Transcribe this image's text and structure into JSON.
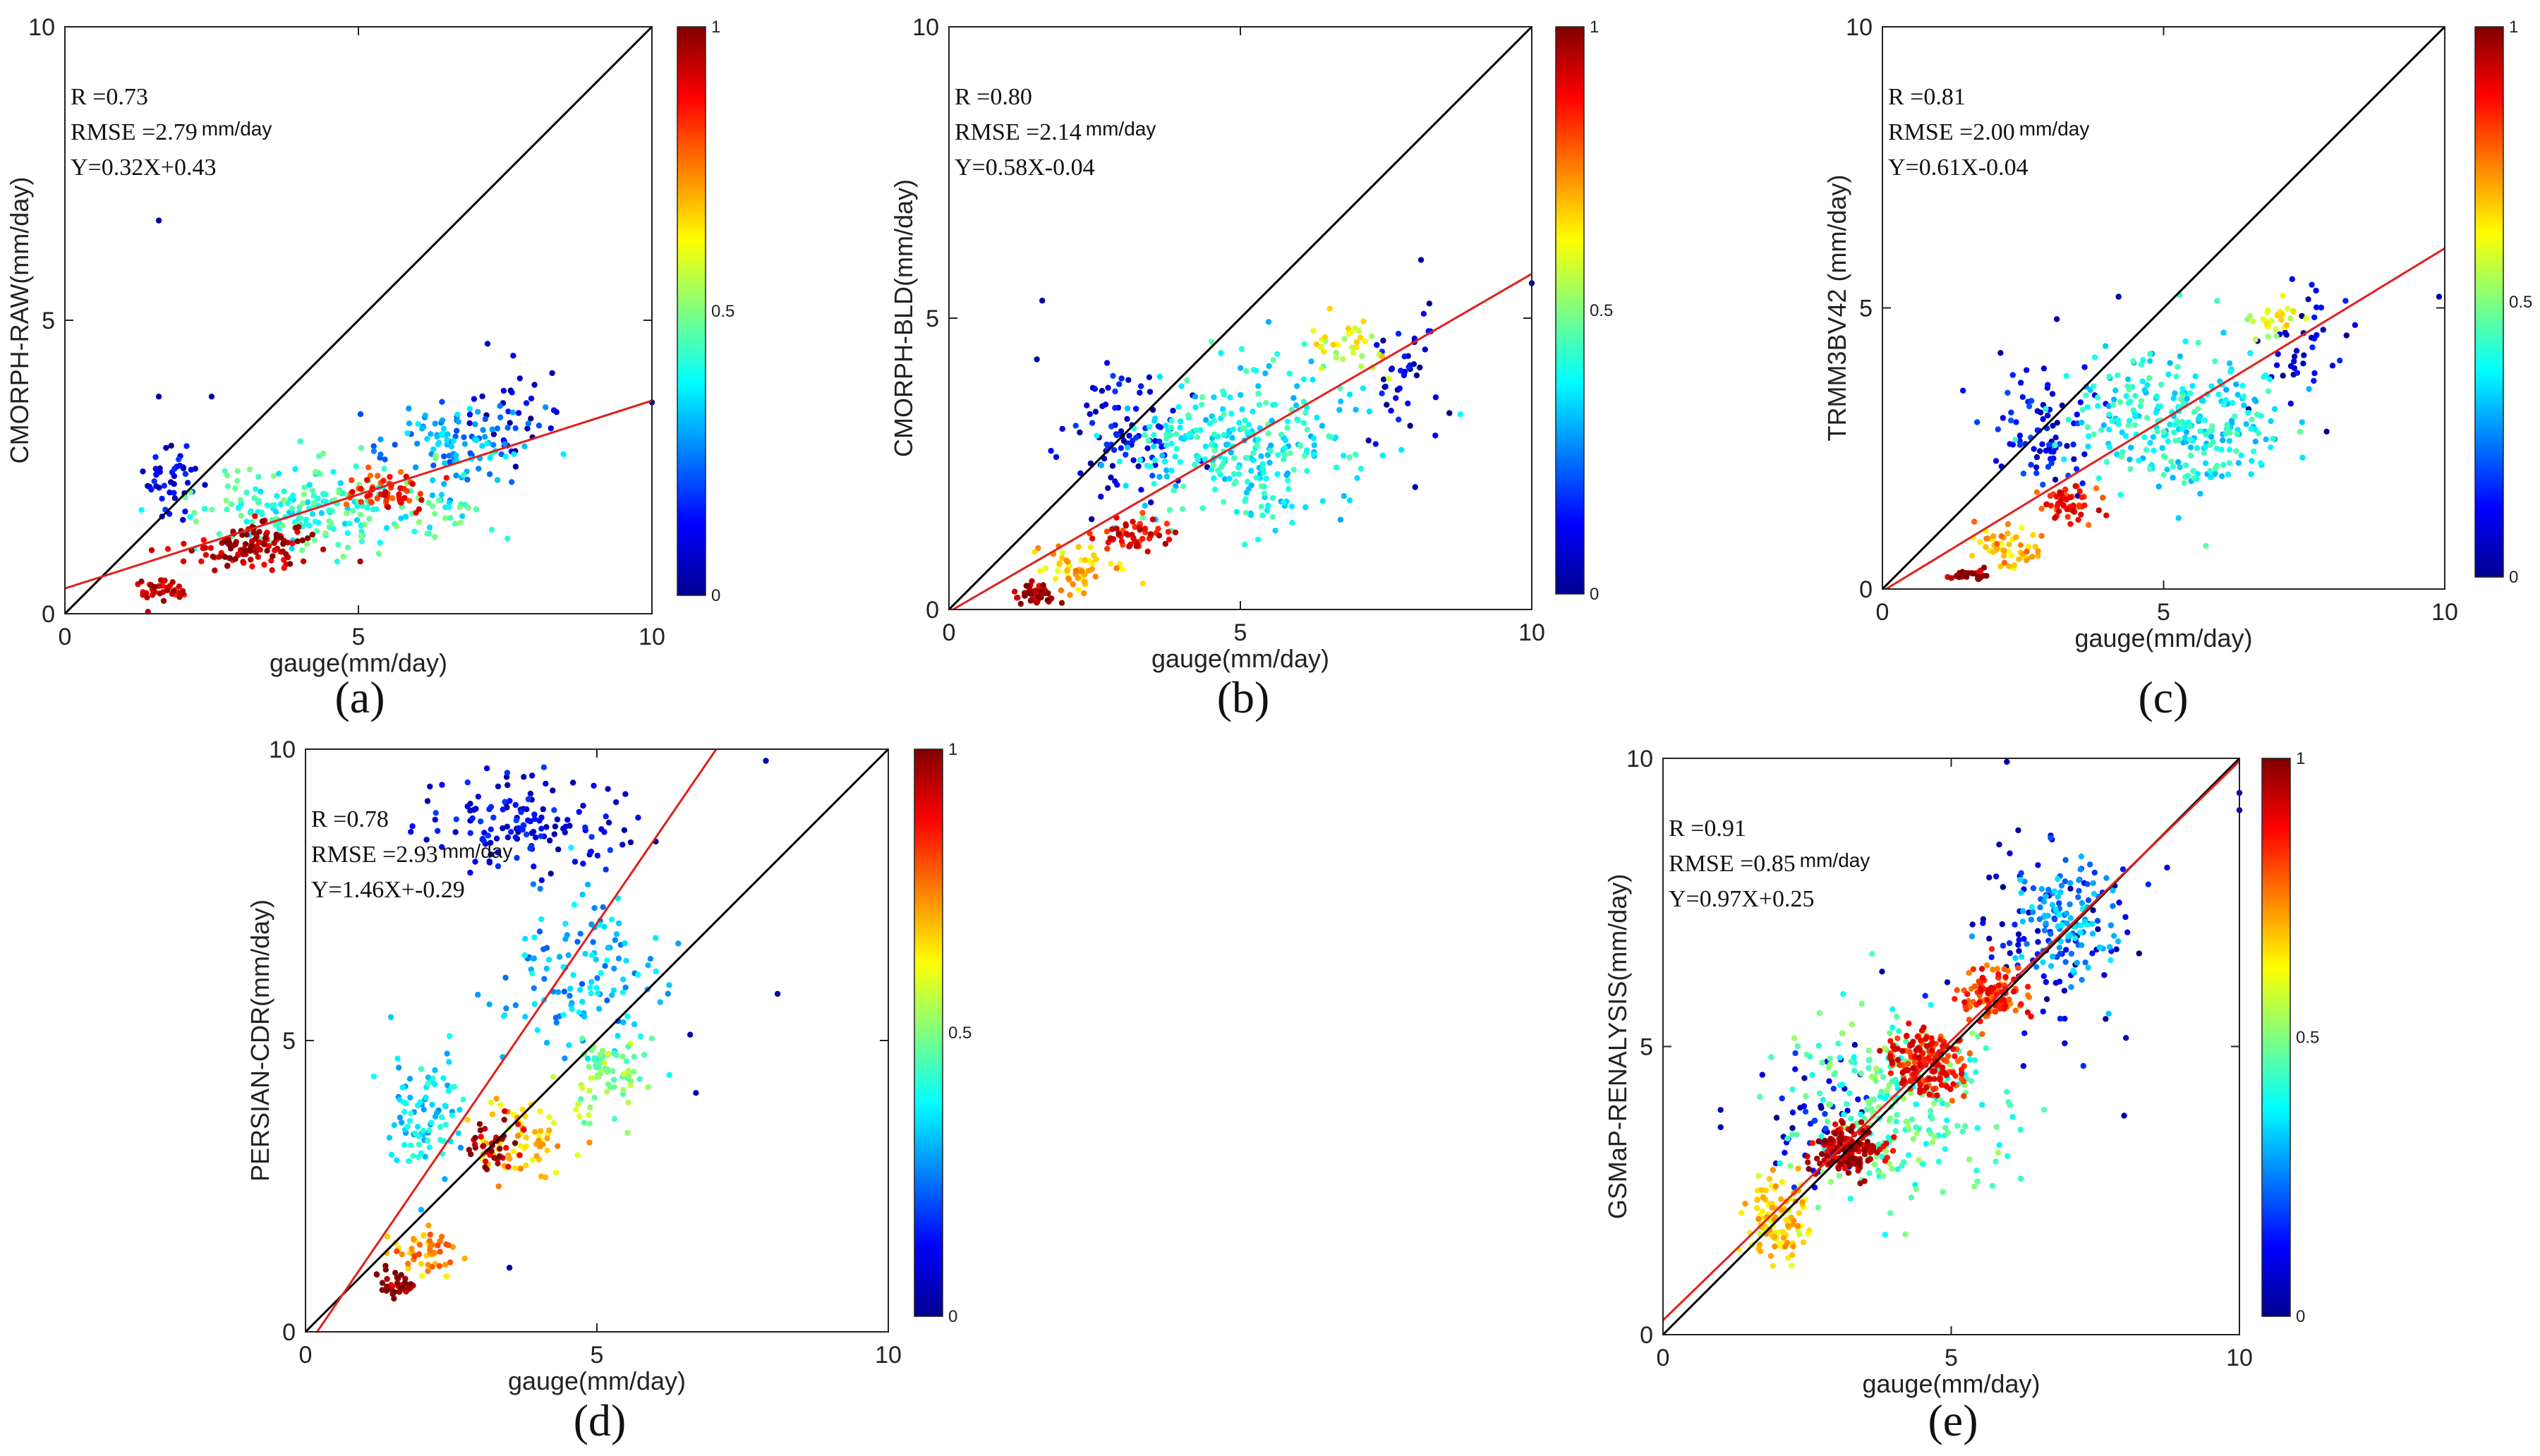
{
  "figure": {
    "colorbar_ticks": [
      "0",
      "0.5",
      "1"
    ]
  },
  "chart_data": [
    {
      "type": "scatter",
      "label": "(a)",
      "xlabel": "gauge(mm/day)",
      "ylabel": "CMORPH-RAW(mm/day)",
      "xlim": [
        0,
        10
      ],
      "ylim": [
        0,
        10
      ],
      "xticks": [
        "0",
        "5",
        "10"
      ],
      "yticks": [
        "0",
        "5",
        "10"
      ],
      "stats": {
        "r": "R =0.73",
        "rmse": "RMSE =2.79",
        "rmse_unit": "mm/day",
        "fit": "Y=0.32X+0.43"
      },
      "slope": 0.32,
      "intercept": 0.43,
      "clusters": [
        {
          "cx": 3.2,
          "cy": 1.15,
          "sx": 0.9,
          "sy": 0.35,
          "n": 120,
          "d": 0.95
        },
        {
          "cx": 5.5,
          "cy": 2.05,
          "sx": 0.5,
          "sy": 0.25,
          "n": 60,
          "d": 0.85
        },
        {
          "cx": 1.6,
          "cy": 0.4,
          "sx": 0.35,
          "sy": 0.2,
          "n": 40,
          "d": 0.9
        },
        {
          "cx": 4.5,
          "cy": 1.8,
          "sx": 2.0,
          "sy": 0.6,
          "n": 220,
          "d": 0.42
        },
        {
          "cx": 6.8,
          "cy": 2.9,
          "sx": 1.2,
          "sy": 0.6,
          "n": 110,
          "d": 0.28
        },
        {
          "cx": 1.8,
          "cy": 2.3,
          "sx": 0.4,
          "sy": 0.6,
          "n": 45,
          "d": 0.1
        },
        {
          "cx": 7.8,
          "cy": 3.4,
          "sx": 0.7,
          "sy": 0.6,
          "n": 30,
          "d": 0.08
        }
      ],
      "outliers": [
        [
          1.6,
          6.7
        ],
        [
          1.6,
          3.7
        ],
        [
          2.5,
          3.7
        ],
        [
          7.2,
          4.6
        ],
        [
          10.0,
          3.6
        ],
        [
          8.3,
          4.1
        ],
        [
          8.0,
          3.9
        ]
      ]
    },
    {
      "type": "scatter",
      "label": "(b)",
      "xlabel": "gauge(mm/day)",
      "ylabel": "CMORPH-BLD(mm/day)",
      "xlim": [
        0,
        10
      ],
      "ylim": [
        0,
        10
      ],
      "xticks": [
        "0",
        "5",
        "10"
      ],
      "yticks": [
        "0",
        "5",
        "10"
      ],
      "stats": {
        "r": "R =0.80",
        "rmse": "RMSE =2.14",
        "rmse_unit": "mm/day",
        "fit": "Y=0.58X-0.04"
      },
      "slope": 0.58,
      "intercept": -0.04,
      "clusters": [
        {
          "cx": 1.5,
          "cy": 0.25,
          "sx": 0.35,
          "sy": 0.15,
          "n": 45,
          "d": 0.95
        },
        {
          "cx": 3.2,
          "cy": 1.3,
          "sx": 0.5,
          "sy": 0.25,
          "n": 55,
          "d": 0.88
        },
        {
          "cx": 2.2,
          "cy": 0.7,
          "sx": 0.6,
          "sy": 0.35,
          "n": 60,
          "d": 0.68
        },
        {
          "cx": 6.7,
          "cy": 4.5,
          "sx": 0.6,
          "sy": 0.4,
          "n": 35,
          "d": 0.6
        },
        {
          "cx": 5.0,
          "cy": 2.8,
          "sx": 1.7,
          "sy": 1.1,
          "n": 300,
          "d": 0.38
        },
        {
          "cx": 3.0,
          "cy": 3.0,
          "sx": 1.0,
          "sy": 1.0,
          "n": 90,
          "d": 0.12
        },
        {
          "cx": 7.8,
          "cy": 4.0,
          "sx": 0.6,
          "sy": 1.0,
          "n": 40,
          "d": 0.08
        }
      ],
      "outliers": [
        [
          1.6,
          5.3
        ],
        [
          8.1,
          6.0
        ],
        [
          10.0,
          5.6
        ],
        [
          8.0,
          2.1
        ],
        [
          7.2,
          2.9
        ]
      ]
    },
    {
      "type": "scatter",
      "label": "(c)",
      "xlabel": "gauge(mm/day)",
      "ylabel": "TRMM3BV42 (mm/day)",
      "xlim": [
        0,
        10
      ],
      "ylim": [
        0,
        10
      ],
      "xticks": [
        "0",
        "5",
        "10"
      ],
      "yticks": [
        "0",
        "5",
        "10"
      ],
      "stats": {
        "r": "R =0.81",
        "rmse": "RMSE =2.00",
        "rmse_unit": "mm/day",
        "fit": "Y=0.61X-0.04"
      },
      "slope": 0.61,
      "intercept": -0.04,
      "clusters": [
        {
          "cx": 1.5,
          "cy": 0.25,
          "sx": 0.3,
          "sy": 0.12,
          "n": 35,
          "d": 0.95
        },
        {
          "cx": 3.3,
          "cy": 1.5,
          "sx": 0.5,
          "sy": 0.25,
          "n": 55,
          "d": 0.85
        },
        {
          "cx": 2.3,
          "cy": 0.8,
          "sx": 0.5,
          "sy": 0.35,
          "n": 50,
          "d": 0.7
        },
        {
          "cx": 7.0,
          "cy": 4.8,
          "sx": 0.5,
          "sy": 0.3,
          "n": 30,
          "d": 0.6
        },
        {
          "cx": 5.2,
          "cy": 3.0,
          "sx": 1.6,
          "sy": 1.0,
          "n": 300,
          "d": 0.38
        },
        {
          "cx": 2.8,
          "cy": 2.8,
          "sx": 0.8,
          "sy": 0.9,
          "n": 80,
          "d": 0.12
        },
        {
          "cx": 7.6,
          "cy": 4.4,
          "sx": 0.6,
          "sy": 0.9,
          "n": 40,
          "d": 0.08
        }
      ],
      "outliers": [
        [
          2.1,
          4.2
        ],
        [
          3.1,
          4.8
        ],
        [
          9.9,
          5.2
        ],
        [
          7.9,
          2.8
        ],
        [
          4.2,
          5.2
        ]
      ]
    },
    {
      "type": "scatter",
      "label": "(d)",
      "xlabel": "gauge(mm/day)",
      "ylabel": "PERSIAN-CDR(mm/day)",
      "xlim": [
        0,
        10
      ],
      "ylim": [
        0,
        10
      ],
      "xticks": [
        "0",
        "5",
        "10"
      ],
      "yticks": [
        "0",
        "5",
        "10"
      ],
      "stats": {
        "r": "R =0.78",
        "rmse": "RMSE =2.93",
        "rmse_unit": "mm/day",
        "fit": "Y=1.46X+-0.29"
      },
      "slope": 1.46,
      "intercept": -0.29,
      "clusters": [
        {
          "cx": 1.5,
          "cy": 0.8,
          "sx": 0.3,
          "sy": 0.2,
          "n": 35,
          "d": 0.95
        },
        {
          "cx": 3.2,
          "cy": 3.2,
          "sx": 0.4,
          "sy": 0.35,
          "n": 40,
          "d": 0.95
        },
        {
          "cx": 2.0,
          "cy": 1.4,
          "sx": 0.45,
          "sy": 0.4,
          "n": 50,
          "d": 0.72
        },
        {
          "cx": 3.8,
          "cy": 3.3,
          "sx": 0.7,
          "sy": 0.6,
          "n": 70,
          "d": 0.68
        },
        {
          "cx": 5.2,
          "cy": 4.4,
          "sx": 0.6,
          "sy": 0.6,
          "n": 70,
          "d": 0.5
        },
        {
          "cx": 2.0,
          "cy": 3.8,
          "sx": 0.6,
          "sy": 0.9,
          "n": 90,
          "d": 0.35
        },
        {
          "cx": 4.8,
          "cy": 6.2,
          "sx": 1.3,
          "sy": 1.2,
          "n": 130,
          "d": 0.3
        },
        {
          "cx": 3.8,
          "cy": 8.8,
          "sx": 1.4,
          "sy": 0.8,
          "n": 140,
          "d": 0.1
        }
      ],
      "outliers": [
        [
          8.1,
          5.8
        ],
        [
          7.9,
          9.8
        ],
        [
          3.5,
          1.1
        ],
        [
          6.6,
          5.1
        ],
        [
          6.7,
          4.1
        ]
      ]
    },
    {
      "type": "scatter",
      "label": "(e)",
      "xlabel": "gauge(mm/day)",
      "ylabel": "GSMaP-RENALYSIS(mm/day)",
      "xlim": [
        0,
        10
      ],
      "ylim": [
        0,
        10
      ],
      "xticks": [
        "0",
        "5",
        "10"
      ],
      "yticks": [
        "0",
        "5",
        "10"
      ],
      "stats": {
        "r": "R =0.91",
        "rmse": "RMSE =0.85",
        "rmse_unit": "mm/day",
        "fit": "Y=0.97X+0.25"
      },
      "slope": 0.97,
      "intercept": 0.25,
      "clusters": [
        {
          "cx": 3.2,
          "cy": 3.2,
          "sx": 0.45,
          "sy": 0.35,
          "n": 150,
          "d": 0.93
        },
        {
          "cx": 4.6,
          "cy": 4.7,
          "sx": 0.6,
          "sy": 0.45,
          "n": 180,
          "d": 0.85
        },
        {
          "cx": 5.8,
          "cy": 5.9,
          "sx": 0.45,
          "sy": 0.4,
          "n": 110,
          "d": 0.82
        },
        {
          "cx": 2.0,
          "cy": 2.0,
          "sx": 0.5,
          "sy": 0.6,
          "n": 120,
          "d": 0.66
        },
        {
          "cx": 4.0,
          "cy": 4.0,
          "sx": 1.4,
          "sy": 1.4,
          "n": 260,
          "d": 0.45
        },
        {
          "cx": 7.0,
          "cy": 7.2,
          "sx": 0.7,
          "sy": 0.8,
          "n": 120,
          "d": 0.28
        },
        {
          "cx": 6.8,
          "cy": 6.8,
          "sx": 1.4,
          "sy": 1.6,
          "n": 90,
          "d": 0.09
        },
        {
          "cx": 2.8,
          "cy": 3.8,
          "sx": 0.7,
          "sy": 1.0,
          "n": 50,
          "d": 0.1
        }
      ],
      "outliers": [
        [
          1.0,
          3.9
        ],
        [
          1.0,
          3.6
        ],
        [
          10.0,
          9.4
        ],
        [
          10.0,
          9.1
        ],
        [
          3.8,
          6.3
        ],
        [
          8.0,
          3.8
        ]
      ]
    }
  ]
}
